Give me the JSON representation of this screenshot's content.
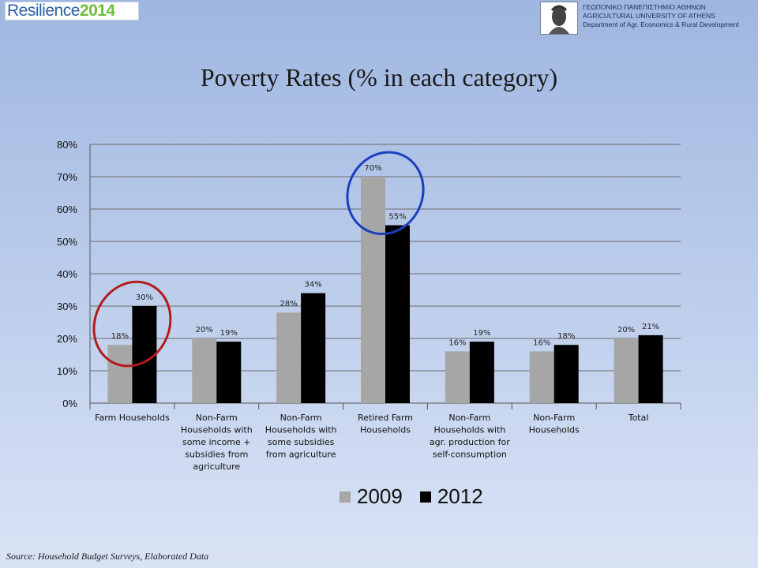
{
  "header": {
    "logo_text_main": "Resilience",
    "logo_text_year": "2014",
    "university_lines": [
      "ΓΕΩΠΟΝΙΚΟ ΠΑΝΕΠΙΣΤΗΜΙΟ ΑΘΗΝΩΝ",
      "AGRICULTURAL UNIVERSITY OF ATHENS",
      "Department of Agr. Economics & Rural Development"
    ]
  },
  "source_text": "Source: Household Budget Surveys, Elaborated Data",
  "chart_data": {
    "type": "bar",
    "title": "Poverty Rates (% in each category)",
    "xlabel": "",
    "ylabel": "",
    "ylim": [
      0,
      80
    ],
    "yticks": [
      "0%",
      "10%",
      "20%",
      "30%",
      "40%",
      "50%",
      "60%",
      "70%",
      "80%"
    ],
    "grid": true,
    "legend_position": "bottom",
    "categories": [
      [
        "Farm Households"
      ],
      [
        "Non-Farm",
        "Households with",
        "some income +",
        "subsidies from",
        "agriculture"
      ],
      [
        "Non-Farm",
        "Households with",
        "some subsidies",
        "from agriculture"
      ],
      [
        "Retired Farm",
        "Households"
      ],
      [
        "Non-Farm",
        "Households with",
        "agr. production for",
        "self-consumption"
      ],
      [
        "Non-Farm",
        "Households"
      ],
      [
        "Total"
      ]
    ],
    "series": [
      {
        "name": "2009",
        "color": "#a6a6a6",
        "values": [
          18,
          20,
          28,
          70,
          16,
          16,
          20
        ],
        "labels": [
          "18%",
          "20%",
          "28%",
          "70%",
          "16%",
          "16%",
          "20%"
        ]
      },
      {
        "name": "2012",
        "color": "#000000",
        "values": [
          30,
          19,
          34,
          55,
          19,
          18,
          21
        ],
        "labels": [
          "30%",
          "19%",
          "34%",
          "55%",
          "19%",
          "18%",
          "21%"
        ]
      }
    ],
    "highlights": [
      {
        "category_index": 0,
        "color": "#b31b1b"
      },
      {
        "category_index": 3,
        "color": "#1c3fbf"
      }
    ]
  }
}
